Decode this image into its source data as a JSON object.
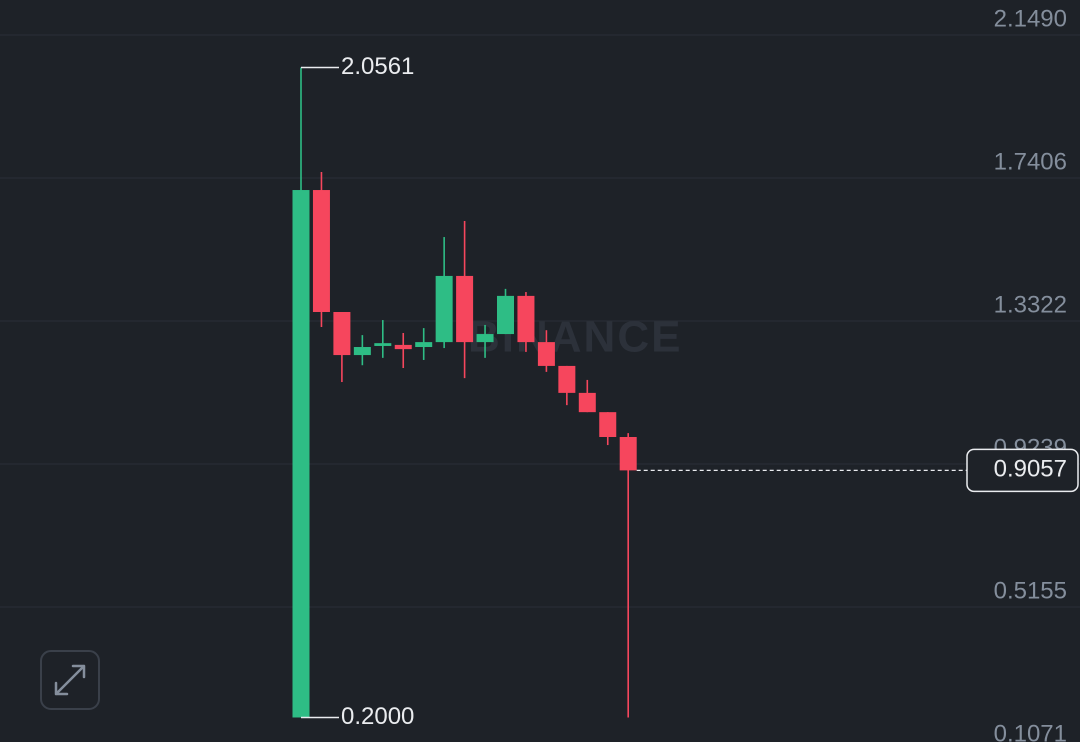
{
  "chart_data": {
    "type": "candlestick",
    "watermark": "BINANCE",
    "up_color": "#2ebd85",
    "down_color": "#f6465d",
    "open": [
      0.2,
      1.7063,
      1.358,
      1.235,
      1.261,
      1.264,
      1.258,
      1.272,
      1.461,
      1.272,
      1.295,
      1.404,
      1.272,
      1.204,
      1.127,
      1.072,
      1.001
    ],
    "high": [
      2.0561,
      1.7577,
      1.358,
      1.292,
      1.335,
      1.298,
      1.312,
      1.572,
      1.618,
      1.321,
      1.424,
      1.415,
      1.306,
      1.204,
      1.164,
      1.072,
      1.012
    ],
    "low": [
      0.2,
      1.315,
      1.158,
      1.206,
      1.227,
      1.198,
      1.221,
      1.255,
      1.169,
      1.227,
      1.295,
      1.244,
      1.187,
      1.092,
      1.072,
      0.978,
      0.2
    ],
    "close": [
      1.7063,
      1.358,
      1.235,
      1.258,
      1.269,
      1.252,
      1.272,
      1.461,
      1.272,
      1.295,
      1.404,
      1.272,
      1.204,
      1.127,
      1.072,
      1.001,
      0.9057
    ],
    "ylim": [
      0.13,
      2.249
    ],
    "yticks": [
      {
        "value": 2.149,
        "label": "2.1490"
      },
      1.7406,
      1.3322,
      0.9239,
      0.5155,
      0.1071
    ],
    "grid": true,
    "high_label": 2.0561,
    "low_label": {
      "value": 0.2,
      "label": "0.2000"
    },
    "last_price": 0.9057
  }
}
